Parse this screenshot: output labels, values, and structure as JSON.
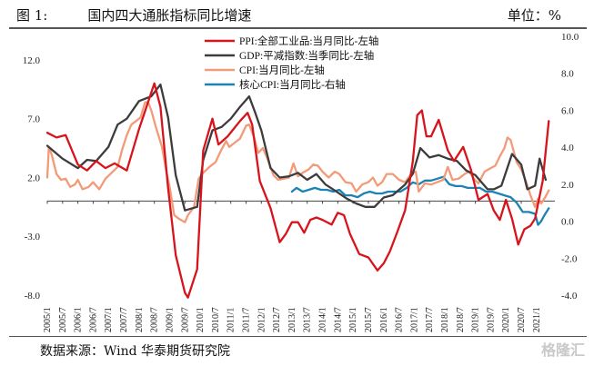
{
  "header": {
    "figure_no": "图 1:",
    "title": "国内四大通胀指标同比增速",
    "unit": "单位：%"
  },
  "footer": {
    "source": "数据来源：Wind 华泰期货研究院",
    "watermark": "格隆汇"
  },
  "chart_data": {
    "type": "line",
    "left_axis": {
      "min": -8,
      "max": 14,
      "ticks": [
        -8.0,
        -3.0,
        2.0,
        7.0,
        12.0
      ],
      "tick_labels": [
        "-8.0",
        "-3.0",
        "2.0",
        "7.0",
        "12.0"
      ]
    },
    "right_axis": {
      "min": -4,
      "max": 10,
      "ticks": [
        -4.0,
        -2.0,
        0.0,
        2.0,
        4.0,
        6.0,
        8.0,
        10.0
      ],
      "tick_labels": [
        "-4.0",
        "-2.0",
        "0.0",
        "2.0",
        "4.0",
        "6.0",
        "8.0",
        "10.0"
      ]
    },
    "x_ticks": [
      "2005/1",
      "2005/7",
      "2006/1",
      "2006/7",
      "2007/1",
      "2007/7",
      "2008/1",
      "2008/7",
      "2009/1",
      "2009/7",
      "2010/1",
      "2010/7",
      "2011/1",
      "2011/7",
      "2012/1",
      "2012/7",
      "2013/1",
      "2013/7",
      "2014/1",
      "2014/7",
      "2015/1",
      "2015/7",
      "2016/1",
      "2016/7",
      "2017/1",
      "2017/7",
      "2018/1",
      "2018/7",
      "2019/1",
      "2019/7",
      "2020/1",
      "2020/7",
      "2021/1"
    ],
    "legend_position": "top-center",
    "series": [
      {
        "name": "PPI:全部工业品:当月同比-左轴",
        "axis": "left",
        "color": "#d7141c",
        "width": 2.3,
        "points": [
          [
            2005.0,
            5.8
          ],
          [
            2005.3,
            5.4
          ],
          [
            2005.6,
            5.6
          ],
          [
            2006.0,
            3.1
          ],
          [
            2006.3,
            2.6
          ],
          [
            2006.6,
            3.4
          ],
          [
            2006.9,
            2.8
          ],
          [
            2007.2,
            3.2
          ],
          [
            2007.6,
            2.6
          ],
          [
            2008.0,
            6.1
          ],
          [
            2008.5,
            10.0
          ],
          [
            2008.7,
            8.0
          ],
          [
            2008.95,
            1.1
          ],
          [
            2009.2,
            -4.6
          ],
          [
            2009.5,
            -7.8
          ],
          [
            2009.6,
            -8.2
          ],
          [
            2009.9,
            -5.8
          ],
          [
            2010.1,
            4.3
          ],
          [
            2010.4,
            7.0
          ],
          [
            2010.6,
            4.8
          ],
          [
            2010.9,
            5.5
          ],
          [
            2011.3,
            6.8
          ],
          [
            2011.55,
            7.5
          ],
          [
            2011.7,
            6.5
          ],
          [
            2011.95,
            1.7
          ],
          [
            2012.3,
            -0.6
          ],
          [
            2012.6,
            -3.5
          ],
          [
            2012.8,
            -2.8
          ],
          [
            2013.0,
            -1.8
          ],
          [
            2013.2,
            -1.8
          ],
          [
            2013.4,
            -2.7
          ],
          [
            2013.6,
            -1.6
          ],
          [
            2013.8,
            -1.4
          ],
          [
            2014.0,
            -1.6
          ],
          [
            2014.3,
            -2.0
          ],
          [
            2014.5,
            -1.0
          ],
          [
            2014.7,
            -1.2
          ],
          [
            2014.9,
            -2.8
          ],
          [
            2015.2,
            -4.5
          ],
          [
            2015.5,
            -4.8
          ],
          [
            2015.8,
            -5.9
          ],
          [
            2016.0,
            -5.3
          ],
          [
            2016.2,
            -4.3
          ],
          [
            2016.45,
            -2.6
          ],
          [
            2016.7,
            -0.8
          ],
          [
            2016.95,
            3.3
          ],
          [
            2017.1,
            7.3
          ],
          [
            2017.25,
            7.7
          ],
          [
            2017.4,
            5.5
          ],
          [
            2017.55,
            5.5
          ],
          [
            2017.8,
            6.9
          ],
          [
            2018.1,
            4.3
          ],
          [
            2018.3,
            3.4
          ],
          [
            2018.6,
            4.6
          ],
          [
            2018.85,
            2.7
          ],
          [
            2019.1,
            0.1
          ],
          [
            2019.4,
            0.6
          ],
          [
            2019.6,
            -0.8
          ],
          [
            2019.8,
            -1.6
          ],
          [
            2020.0,
            0.1
          ],
          [
            2020.2,
            -1.5
          ],
          [
            2020.4,
            -3.7
          ],
          [
            2020.6,
            -2.4
          ],
          [
            2020.8,
            -2.1
          ],
          [
            2020.95,
            -1.5
          ],
          [
            2021.2,
            1.7
          ],
          [
            2021.4,
            6.8
          ]
        ]
      },
      {
        "name": "GDP:平减指数:当季同比-左轴",
        "axis": "left",
        "color": "#3c3c3c",
        "width": 2.3,
        "points": [
          [
            2005.0,
            4.7
          ],
          [
            2005.5,
            3.6
          ],
          [
            2006.0,
            2.8
          ],
          [
            2006.3,
            3.5
          ],
          [
            2006.6,
            3.4
          ],
          [
            2007.0,
            4.6
          ],
          [
            2007.3,
            6.5
          ],
          [
            2007.6,
            7.0
          ],
          [
            2008.0,
            8.5
          ],
          [
            2008.4,
            8.9
          ],
          [
            2008.7,
            9.9
          ],
          [
            2008.95,
            7.1
          ],
          [
            2009.2,
            2.2
          ],
          [
            2009.5,
            -0.8
          ],
          [
            2009.9,
            -0.5
          ],
          [
            2010.1,
            3.5
          ],
          [
            2010.4,
            6.0
          ],
          [
            2010.7,
            6.3
          ],
          [
            2011.0,
            7.0
          ],
          [
            2011.3,
            8.0
          ],
          [
            2011.6,
            8.9
          ],
          [
            2011.8,
            7.5
          ],
          [
            2012.0,
            6.0
          ],
          [
            2012.3,
            2.8
          ],
          [
            2012.6,
            2.0
          ],
          [
            2012.9,
            2.1
          ],
          [
            2013.2,
            2.4
          ],
          [
            2013.5,
            1.8
          ],
          [
            2013.8,
            2.3
          ],
          [
            2014.1,
            1.4
          ],
          [
            2014.4,
            0.9
          ],
          [
            2014.8,
            0.2
          ],
          [
            2015.1,
            -0.2
          ],
          [
            2015.4,
            -0.5
          ],
          [
            2015.7,
            -0.5
          ],
          [
            2016.0,
            0.3
          ],
          [
            2016.3,
            0.5
          ],
          [
            2016.7,
            1.4
          ],
          [
            2016.95,
            2.3
          ],
          [
            2017.2,
            4.5
          ],
          [
            2017.5,
            3.7
          ],
          [
            2017.8,
            3.9
          ],
          [
            2018.1,
            3.6
          ],
          [
            2018.4,
            3.4
          ],
          [
            2018.7,
            2.6
          ],
          [
            2019.0,
            2.2
          ],
          [
            2019.4,
            1.0
          ],
          [
            2019.6,
            1.0
          ],
          [
            2019.85,
            1.3
          ],
          [
            2020.2,
            4.0
          ],
          [
            2020.5,
            3.1
          ],
          [
            2020.7,
            1.0
          ],
          [
            2020.95,
            1.3
          ],
          [
            2021.1,
            3.6
          ],
          [
            2021.3,
            1.8
          ]
        ]
      },
      {
        "name": "CPI:当月同比-左轴",
        "axis": "left",
        "color": "#f39a78",
        "width": 2.3,
        "points": [
          [
            2005.0,
            2.0
          ],
          [
            2005.05,
            4.6
          ],
          [
            2005.15,
            3.9
          ],
          [
            2005.3,
            2.3
          ],
          [
            2005.45,
            1.8
          ],
          [
            2005.6,
            1.9
          ],
          [
            2005.75,
            1.2
          ],
          [
            2005.9,
            1.4
          ],
          [
            2006.0,
            1.8
          ],
          [
            2006.15,
            1.0
          ],
          [
            2006.35,
            1.2
          ],
          [
            2006.5,
            1.6
          ],
          [
            2006.7,
            1.0
          ],
          [
            2006.9,
            1.9
          ],
          [
            2007.1,
            2.4
          ],
          [
            2007.3,
            2.9
          ],
          [
            2007.45,
            4.4
          ],
          [
            2007.6,
            5.6
          ],
          [
            2007.75,
            6.5
          ],
          [
            2007.9,
            6.8
          ],
          [
            2008.05,
            7.1
          ],
          [
            2008.2,
            8.4
          ],
          [
            2008.3,
            8.4
          ],
          [
            2008.4,
            7.7
          ],
          [
            2008.55,
            6.3
          ],
          [
            2008.75,
            4.6
          ],
          [
            2008.9,
            2.4
          ],
          [
            2009.0,
            1.2
          ],
          [
            2009.15,
            -1.2
          ],
          [
            2009.3,
            -1.5
          ],
          [
            2009.5,
            -1.8
          ],
          [
            2009.6,
            -1.2
          ],
          [
            2009.8,
            -0.5
          ],
          [
            2009.95,
            1.9
          ],
          [
            2010.1,
            2.4
          ],
          [
            2010.3,
            2.9
          ],
          [
            2010.5,
            3.3
          ],
          [
            2010.7,
            4.4
          ],
          [
            2010.85,
            5.1
          ],
          [
            2010.95,
            4.6
          ],
          [
            2011.1,
            4.9
          ],
          [
            2011.3,
            5.3
          ],
          [
            2011.5,
            6.4
          ],
          [
            2011.6,
            6.5
          ],
          [
            2011.75,
            5.5
          ],
          [
            2011.9,
            4.1
          ],
          [
            2012.05,
            4.5
          ],
          [
            2012.2,
            3.6
          ],
          [
            2012.4,
            2.2
          ],
          [
            2012.55,
            1.8
          ],
          [
            2012.75,
            1.9
          ],
          [
            2012.9,
            2.0
          ],
          [
            2013.05,
            3.2
          ],
          [
            2013.2,
            2.1
          ],
          [
            2013.35,
            2.4
          ],
          [
            2013.55,
            2.7
          ],
          [
            2013.7,
            3.1
          ],
          [
            2013.85,
            3.0
          ],
          [
            2014.0,
            2.5
          ],
          [
            2014.2,
            2.0
          ],
          [
            2014.4,
            2.5
          ],
          [
            2014.55,
            2.3
          ],
          [
            2014.75,
            1.6
          ],
          [
            2014.95,
            1.5
          ],
          [
            2015.1,
            0.8
          ],
          [
            2015.3,
            1.4
          ],
          [
            2015.5,
            1.6
          ],
          [
            2015.65,
            2.0
          ],
          [
            2015.8,
            1.3
          ],
          [
            2015.95,
            1.6
          ],
          [
            2016.1,
            2.3
          ],
          [
            2016.3,
            2.3
          ],
          [
            2016.5,
            1.8
          ],
          [
            2016.7,
            1.6
          ],
          [
            2016.9,
            2.3
          ],
          [
            2017.05,
            2.5
          ],
          [
            2017.15,
            0.8
          ],
          [
            2017.35,
            1.5
          ],
          [
            2017.55,
            1.4
          ],
          [
            2017.75,
            1.6
          ],
          [
            2017.95,
            1.8
          ],
          [
            2018.1,
            2.9
          ],
          [
            2018.25,
            1.8
          ],
          [
            2018.45,
            1.9
          ],
          [
            2018.65,
            2.3
          ],
          [
            2018.8,
            2.5
          ],
          [
            2018.95,
            1.9
          ],
          [
            2019.1,
            1.5
          ],
          [
            2019.3,
            2.5
          ],
          [
            2019.5,
            2.8
          ],
          [
            2019.65,
            3.0
          ],
          [
            2019.8,
            3.8
          ],
          [
            2019.95,
            4.5
          ],
          [
            2020.05,
            5.4
          ],
          [
            2020.15,
            5.2
          ],
          [
            2020.35,
            3.3
          ],
          [
            2020.5,
            2.7
          ],
          [
            2020.65,
            1.7
          ],
          [
            2020.8,
            0.5
          ],
          [
            2020.95,
            -0.5
          ],
          [
            2021.05,
            0.2
          ],
          [
            2021.15,
            -0.2
          ],
          [
            2021.3,
            0.4
          ],
          [
            2021.4,
            0.9
          ]
        ]
      },
      {
        "name": "核心CPI:当月同比-右轴",
        "axis": "right",
        "color": "#1c82b4",
        "width": 2.3,
        "points": [
          [
            2013.0,
            1.6
          ],
          [
            2013.15,
            1.8
          ],
          [
            2013.35,
            1.6
          ],
          [
            2013.55,
            1.7
          ],
          [
            2013.75,
            1.8
          ],
          [
            2013.95,
            1.7
          ],
          [
            2014.15,
            1.7
          ],
          [
            2014.35,
            1.6
          ],
          [
            2014.55,
            1.7
          ],
          [
            2014.75,
            1.4
          ],
          [
            2014.95,
            1.4
          ],
          [
            2015.15,
            1.3
          ],
          [
            2015.35,
            1.5
          ],
          [
            2015.55,
            1.6
          ],
          [
            2015.75,
            1.5
          ],
          [
            2015.95,
            1.5
          ],
          [
            2016.15,
            1.6
          ],
          [
            2016.35,
            1.6
          ],
          [
            2016.55,
            1.6
          ],
          [
            2016.75,
            1.8
          ],
          [
            2016.95,
            2.1
          ],
          [
            2017.15,
            2.0
          ],
          [
            2017.35,
            2.2
          ],
          [
            2017.55,
            2.2
          ],
          [
            2017.75,
            2.3
          ],
          [
            2017.95,
            2.4
          ],
          [
            2018.15,
            2.0
          ],
          [
            2018.35,
            1.9
          ],
          [
            2018.55,
            1.9
          ],
          [
            2018.75,
            1.8
          ],
          [
            2018.95,
            1.8
          ],
          [
            2019.15,
            1.8
          ],
          [
            2019.35,
            1.6
          ],
          [
            2019.55,
            1.6
          ],
          [
            2019.75,
            1.5
          ],
          [
            2019.95,
            1.4
          ],
          [
            2020.15,
            1.3
          ],
          [
            2020.35,
            1.0
          ],
          [
            2020.55,
            0.5
          ],
          [
            2020.75,
            0.5
          ],
          [
            2020.95,
            0.4
          ],
          [
            2021.05,
            -0.2
          ],
          [
            2021.15,
            0.0
          ],
          [
            2021.25,
            0.3
          ],
          [
            2021.4,
            0.7
          ]
        ]
      }
    ]
  }
}
